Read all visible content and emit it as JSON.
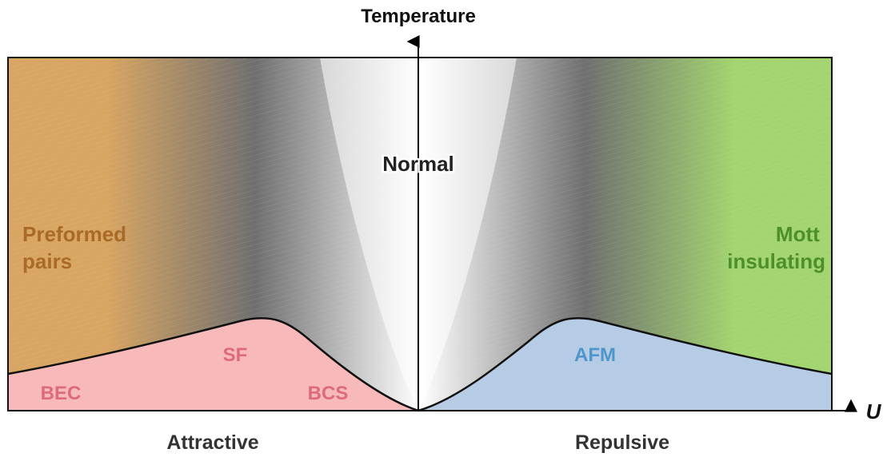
{
  "axes": {
    "y_label": "Temperature",
    "x_label": "U"
  },
  "regions": {
    "normal": "Normal",
    "preformed_pairs": [
      "Preformed",
      "pairs"
    ],
    "mott_insulating": [
      "Mott",
      "insulating"
    ],
    "superfluid": "SF",
    "bec": "BEC",
    "bcs": "BCS",
    "afm": "AFM"
  },
  "bottom_labels": {
    "attractive": "Attractive",
    "repulsive": "Repulsive"
  },
  "colors": {
    "preformed_pairs": "#d8a562",
    "mott_insulating": "#a2d46f",
    "normal_white": "#ffffff",
    "normal_gray": "#6f6f6f",
    "superfluid_fill": "#f7b9b9",
    "superfluid_text": "#dd6b7b",
    "afm_fill": "#b6cce4",
    "afm_text": "#4e95cc",
    "preformed_text": "#a96a27",
    "mott_text": "#4c8f2b",
    "axis": "#000000",
    "text_dark": "#333333"
  }
}
